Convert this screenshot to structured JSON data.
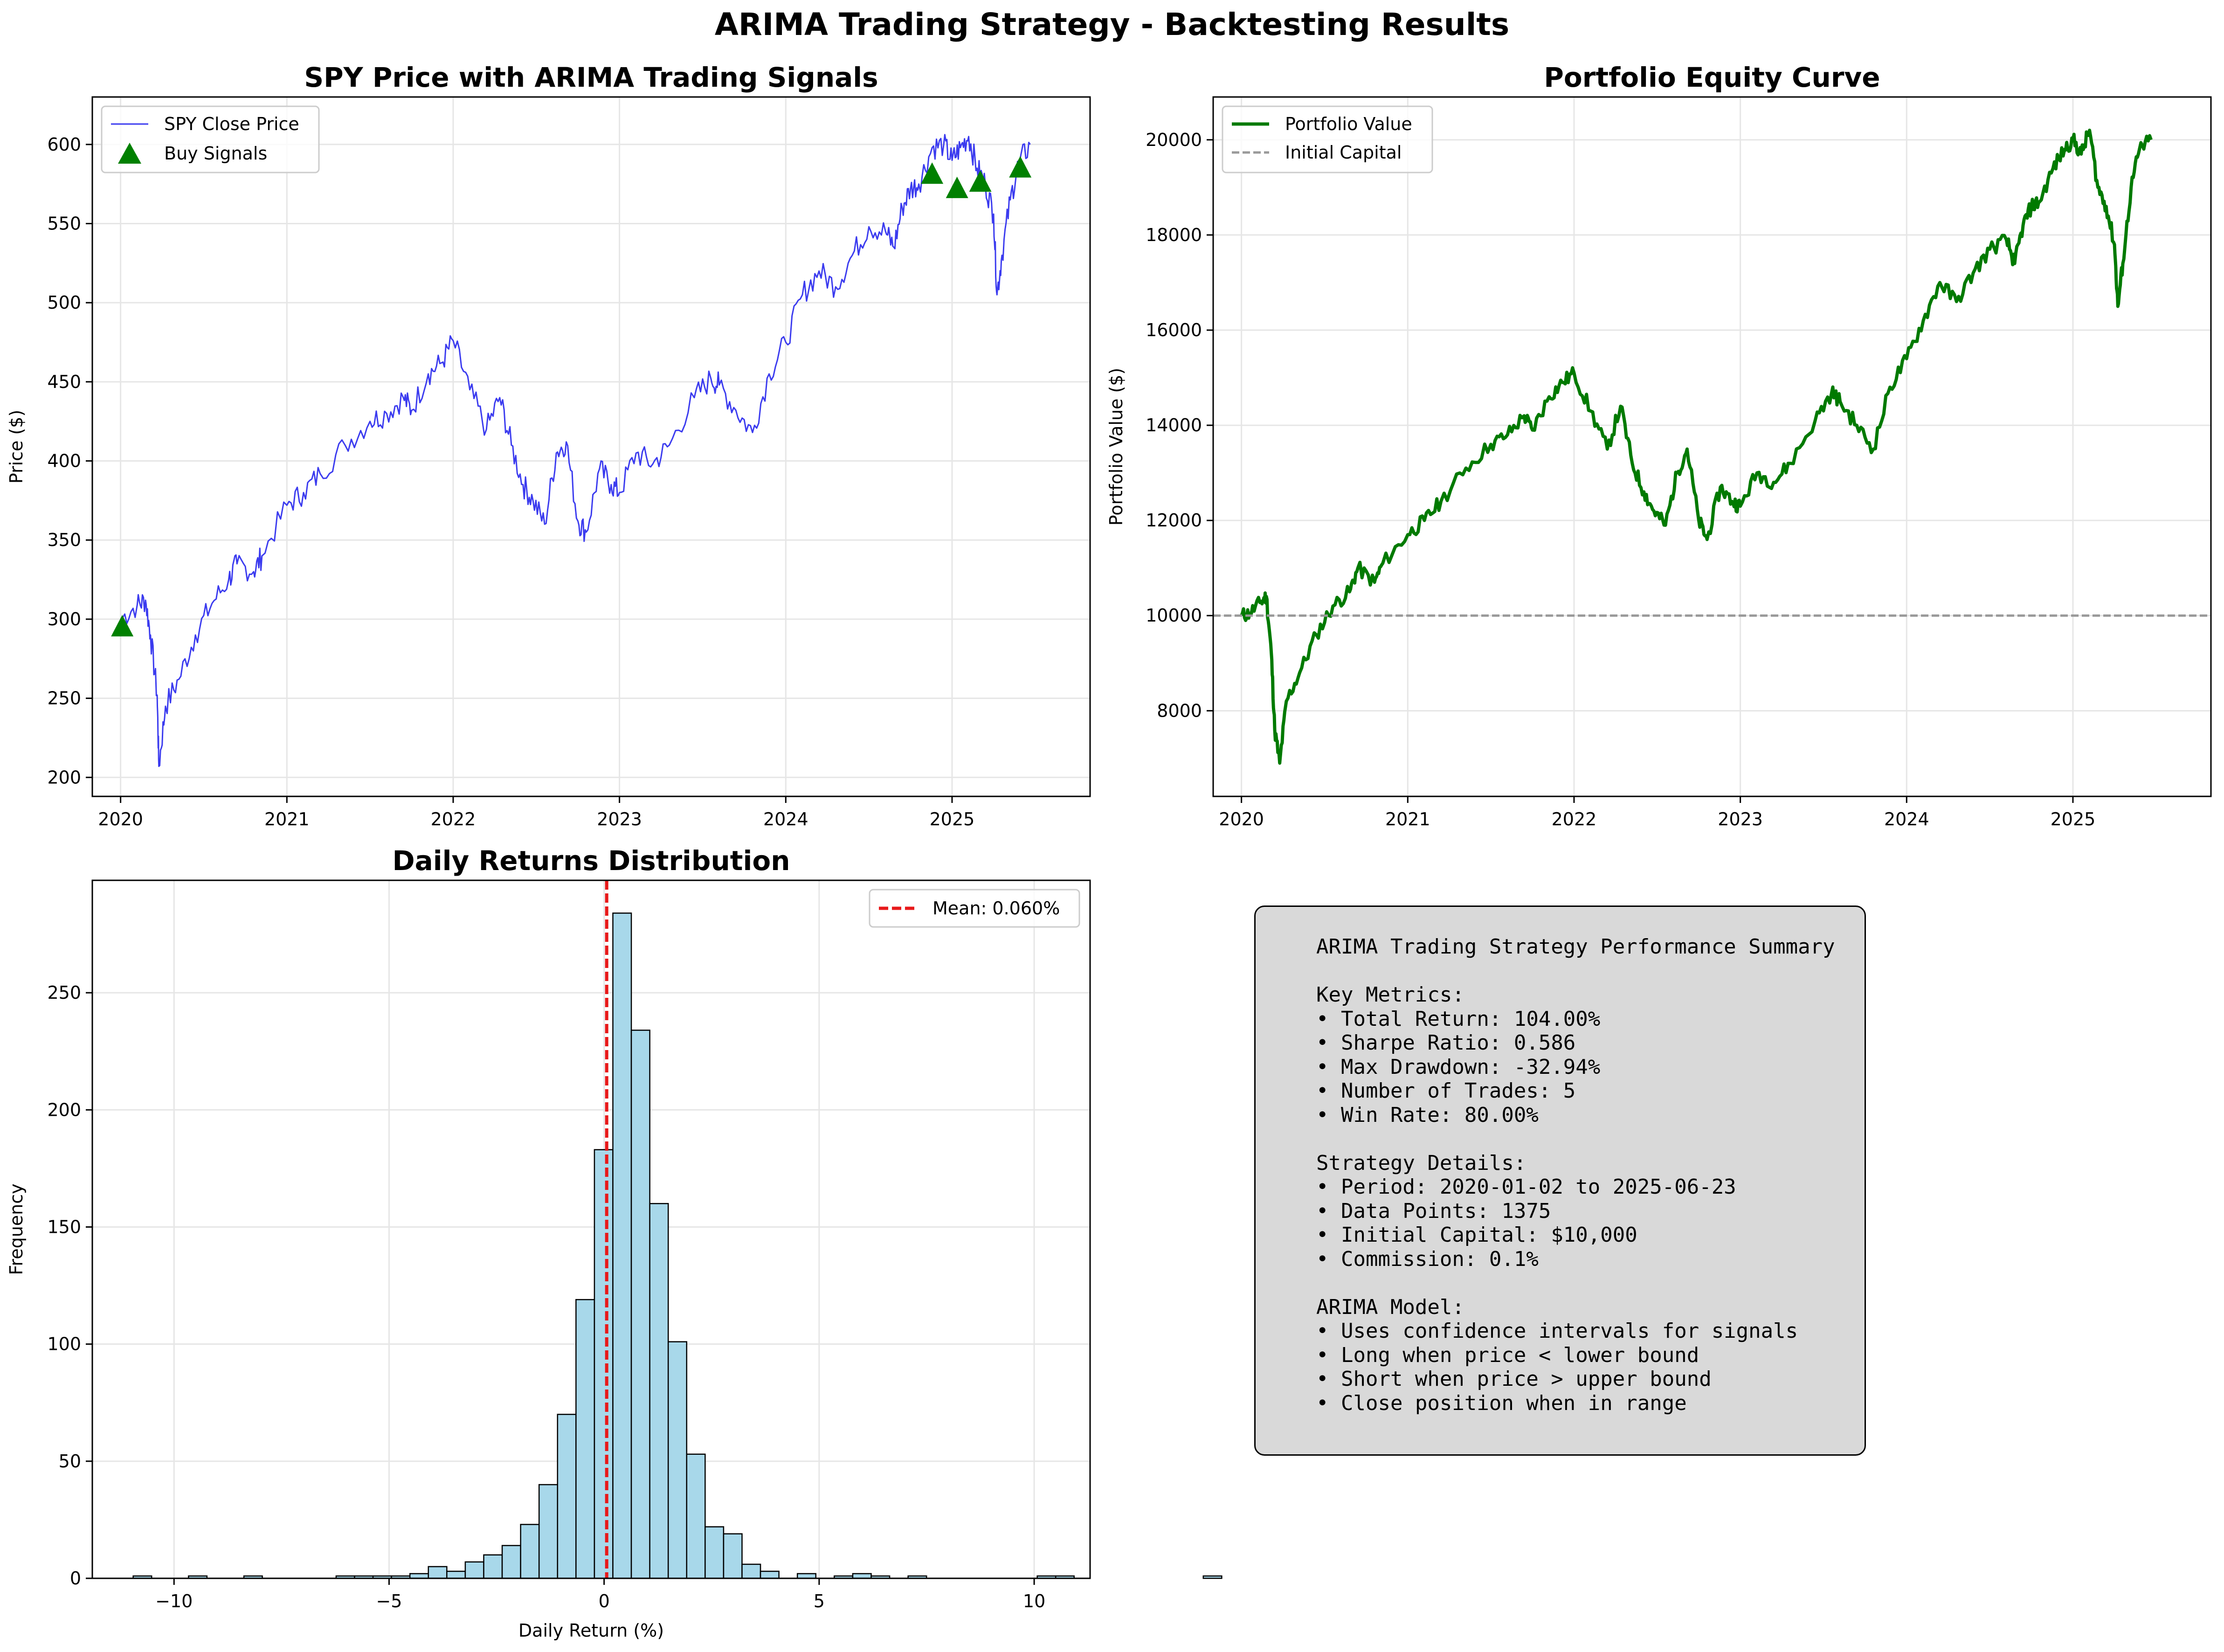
{
  "figure_title": "ARIMA Trading Strategy - Backtesting Results",
  "colors": {
    "price_line": "#3b3bef",
    "buy_signal": "#008000",
    "equity_line": "#007a00",
    "initial_capital_line": "#999999",
    "hist_fill": "#a8d8ea",
    "mean_line": "#e8191a",
    "summary_bg": "#d9d9d9",
    "grid": "#e6e6e6"
  },
  "summary_text": "ARIMA Trading Strategy Performance Summary\n\nKey Metrics:\n• Total Return: 104.00%\n• Sharpe Ratio: 0.586\n• Max Drawdown: -32.94%\n• Number of Trades: 5\n• Win Rate: 80.00%\n\nStrategy Details:\n• Period: 2020-01-02 to 2025-06-23\n• Data Points: 1375\n• Initial Capital: $10,000\n• Commission: 0.1%\n\nARIMA Model:\n• Uses confidence intervals for signals\n• Long when price < lower bound\n• Short when price > upper bound\n• Close position when in range",
  "chart_data": [
    {
      "type": "line",
      "title": "SPY Price with ARIMA Trading Signals",
      "xlabel": "",
      "ylabel": "Price ($)",
      "xlim": [
        2019.83,
        2025.83
      ],
      "ylim": [
        188,
        630
      ],
      "xticks": [
        2020,
        2021,
        2022,
        2023,
        2024,
        2025
      ],
      "xtick_labels": [
        "2020",
        "2021",
        "2022",
        "2023",
        "2024",
        "2025"
      ],
      "yticks": [
        200,
        250,
        300,
        350,
        400,
        450,
        500,
        550,
        600
      ],
      "ytick_labels": [
        "200",
        "250",
        "300",
        "350",
        "400",
        "450",
        "500",
        "550",
        "600"
      ],
      "grid": true,
      "legend_position": "top-left",
      "legend": [
        "SPY Close Price",
        "Buy Signals"
      ],
      "series": [
        {
          "name": "SPY Close Price",
          "anchors": [
            [
              2020.0,
              300
            ],
            [
              2020.1,
              309
            ],
            [
              2020.15,
              312
            ],
            [
              2020.18,
              290
            ],
            [
              2020.22,
              252
            ],
            [
              2020.23,
              207
            ],
            [
              2020.27,
              245
            ],
            [
              2020.35,
              262
            ],
            [
              2020.45,
              290
            ],
            [
              2020.55,
              310
            ],
            [
              2020.65,
              325
            ],
            [
              2020.7,
              335
            ],
            [
              2020.8,
              330
            ],
            [
              2020.85,
              340
            ],
            [
              2021.0,
              372
            ],
            [
              2021.1,
              380
            ],
            [
              2021.2,
              392
            ],
            [
              2021.35,
              410
            ],
            [
              2021.5,
              425
            ],
            [
              2021.6,
              430
            ],
            [
              2021.7,
              440
            ],
            [
              2021.75,
              432
            ],
            [
              2021.85,
              455
            ],
            [
              2021.93,
              462
            ],
            [
              2022.0,
              476
            ],
            [
              2022.1,
              445
            ],
            [
              2022.2,
              420
            ],
            [
              2022.28,
              440
            ],
            [
              2022.35,
              410
            ],
            [
              2022.42,
              385
            ],
            [
              2022.48,
              375
            ],
            [
              2022.55,
              360
            ],
            [
              2022.62,
              405
            ],
            [
              2022.68,
              412
            ],
            [
              2022.75,
              362
            ],
            [
              2022.8,
              355
            ],
            [
              2022.88,
              395
            ],
            [
              2022.95,
              385
            ],
            [
              2023.0,
              380
            ],
            [
              2023.1,
              405
            ],
            [
              2023.2,
              398
            ],
            [
              2023.3,
              410
            ],
            [
              2023.45,
              440
            ],
            [
              2023.55,
              452
            ],
            [
              2023.6,
              448
            ],
            [
              2023.7,
              432
            ],
            [
              2023.8,
              418
            ],
            [
              2023.9,
              455
            ],
            [
              2024.0,
              475
            ],
            [
              2024.1,
              505
            ],
            [
              2024.2,
              520
            ],
            [
              2024.3,
              510
            ],
            [
              2024.4,
              530
            ],
            [
              2024.5,
              548
            ],
            [
              2024.6,
              545
            ],
            [
              2024.65,
              535
            ],
            [
              2024.7,
              560
            ],
            [
              2024.75,
              572
            ],
            [
              2024.8,
              575
            ],
            [
              2024.88,
              598
            ],
            [
              2024.95,
              600
            ],
            [
              2025.0,
              590
            ],
            [
              2025.05,
              598
            ],
            [
              2025.1,
              605
            ],
            [
              2025.15,
              585
            ],
            [
              2025.2,
              575
            ],
            [
              2025.25,
              556
            ],
            [
              2025.27,
              505
            ],
            [
              2025.3,
              530
            ],
            [
              2025.35,
              565
            ],
            [
              2025.4,
              588
            ],
            [
              2025.47,
              600
            ]
          ]
        },
        {
          "name": "Buy Signals",
          "points": [
            [
              2020.01,
              295
            ],
            [
              2024.88,
              581
            ],
            [
              2025.03,
              572
            ],
            [
              2025.17,
              576
            ],
            [
              2025.41,
              585
            ]
          ]
        }
      ]
    },
    {
      "type": "line",
      "title": "Portfolio Equity Curve",
      "xlabel": "",
      "ylabel": "Portfolio Value ($)",
      "xlim": [
        2019.83,
        2025.83
      ],
      "ylim": [
        6200,
        20900
      ],
      "xticks": [
        2020,
        2021,
        2022,
        2023,
        2024,
        2025
      ],
      "xtick_labels": [
        "2020",
        "2021",
        "2022",
        "2023",
        "2024",
        "2025"
      ],
      "yticks": [
        8000,
        10000,
        12000,
        14000,
        16000,
        18000,
        20000
      ],
      "ytick_labels": [
        "8000",
        "10000",
        "12000",
        "14000",
        "16000",
        "18000",
        "20000"
      ],
      "grid": true,
      "legend_position": "top-left",
      "legend": [
        "Portfolio Value",
        "Initial Capital"
      ],
      "series": [
        {
          "name": "Portfolio Value",
          "anchors": [
            [
              2020.0,
              10000
            ],
            [
              2020.05,
              10050
            ],
            [
              2020.12,
              10300
            ],
            [
              2020.15,
              10400
            ],
            [
              2020.18,
              9200
            ],
            [
              2020.2,
              7600
            ],
            [
              2020.23,
              6900
            ],
            [
              2020.27,
              8200
            ],
            [
              2020.35,
              8800
            ],
            [
              2020.45,
              9600
            ],
            [
              2020.55,
              10200
            ],
            [
              2020.65,
              10500
            ],
            [
              2020.7,
              11000
            ],
            [
              2020.8,
              10700
            ],
            [
              2020.85,
              11100
            ],
            [
              2021.0,
              11700
            ],
            [
              2021.1,
              12000
            ],
            [
              2021.2,
              12400
            ],
            [
              2021.35,
              13100
            ],
            [
              2021.5,
              13600
            ],
            [
              2021.6,
              13800
            ],
            [
              2021.7,
              14200
            ],
            [
              2021.75,
              13900
            ],
            [
              2021.85,
              14600
            ],
            [
              2021.93,
              14900
            ],
            [
              2022.0,
              15100
            ],
            [
              2022.1,
              14300
            ],
            [
              2022.2,
              13500
            ],
            [
              2022.28,
              14400
            ],
            [
              2022.35,
              13200
            ],
            [
              2022.42,
              12600
            ],
            [
              2022.48,
              12200
            ],
            [
              2022.55,
              11900
            ],
            [
              2022.62,
              13000
            ],
            [
              2022.68,
              13500
            ],
            [
              2022.75,
              12000
            ],
            [
              2022.8,
              11600
            ],
            [
              2022.88,
              12700
            ],
            [
              2022.95,
              12400
            ],
            [
              2023.0,
              12300
            ],
            [
              2023.1,
              13000
            ],
            [
              2023.2,
              12800
            ],
            [
              2023.3,
              13200
            ],
            [
              2023.45,
              14100
            ],
            [
              2023.55,
              14700
            ],
            [
              2023.6,
              14500
            ],
            [
              2023.7,
              14000
            ],
            [
              2023.8,
              13500
            ],
            [
              2023.9,
              14800
            ],
            [
              2024.0,
              15400
            ],
            [
              2024.1,
              16200
            ],
            [
              2024.2,
              17000
            ],
            [
              2024.3,
              16600
            ],
            [
              2024.4,
              17200
            ],
            [
              2024.5,
              17700
            ],
            [
              2024.6,
              17900
            ],
            [
              2024.65,
              17400
            ],
            [
              2024.7,
              18200
            ],
            [
              2024.75,
              18600
            ],
            [
              2024.8,
              18700
            ],
            [
              2024.88,
              19400
            ],
            [
              2024.95,
              19800
            ],
            [
              2025.0,
              20000
            ],
            [
              2025.05,
              19700
            ],
            [
              2025.1,
              20200
            ],
            [
              2025.15,
              19000
            ],
            [
              2025.2,
              18600
            ],
            [
              2025.25,
              17800
            ],
            [
              2025.27,
              16500
            ],
            [
              2025.3,
              17400
            ],
            [
              2025.35,
              19000
            ],
            [
              2025.4,
              19800
            ],
            [
              2025.47,
              20000
            ]
          ]
        },
        {
          "name": "Initial Capital",
          "value": 10000
        }
      ]
    },
    {
      "type": "bar",
      "title": "Daily Returns Distribution",
      "xlabel": "Daily Return (%)",
      "ylabel": "Frequency",
      "xlim": [
        -11.9,
        11.3
      ],
      "ylim": [
        0,
        298
      ],
      "xticks": [
        -10,
        -5,
        0,
        5,
        10
      ],
      "xtick_labels": [
        "−10",
        "−5",
        "0",
        "5",
        "10"
      ],
      "yticks": [
        0,
        50,
        100,
        150,
        200,
        250
      ],
      "ytick_labels": [
        "0",
        "50",
        "100",
        "150",
        "200",
        "250"
      ],
      "grid": true,
      "legend_position": "top-right",
      "legend": [
        "Mean: 0.060%"
      ],
      "bin_start": -10.95,
      "bin_width": 0.429,
      "counts": [
        1,
        0,
        0,
        1,
        0,
        0,
        1,
        0,
        0,
        0,
        0,
        1,
        1,
        1,
        1,
        2,
        5,
        3,
        7,
        10,
        14,
        23,
        40,
        70,
        119,
        183,
        284,
        234,
        160,
        101,
        53,
        22,
        19,
        6,
        3,
        0,
        2,
        0,
        1,
        2,
        1,
        0,
        1,
        0,
        0,
        0,
        0,
        0,
        0,
        1,
        1,
        0,
        0,
        0,
        0,
        0,
        0,
        0,
        1
      ],
      "mean": 0.06
    }
  ]
}
